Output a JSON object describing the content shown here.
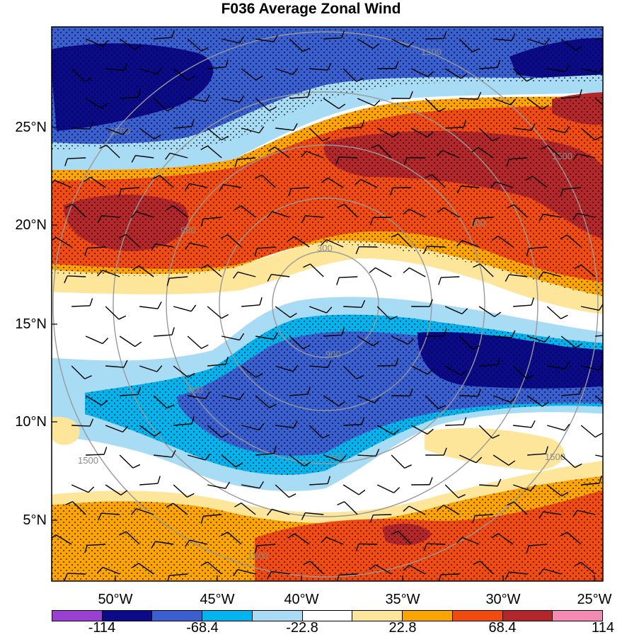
{
  "title": "F036 Average Zonal Wind",
  "lat_labels": [
    "25°N",
    "20°N",
    "15°N",
    "10°N",
    "5°N"
  ],
  "lon_labels": [
    "50°W",
    "45°W",
    "40°W",
    "35°W",
    "30°W",
    "25°W"
  ],
  "colorbar": {
    "colors": [
      "#9a3fd1",
      "#0a0a8a",
      "#3a5fd0",
      "#00b4f0",
      "#a8dcf5",
      "#ffffff",
      "#fde69a",
      "#fca500",
      "#f24b0f",
      "#b3272a",
      "#f48ab4"
    ],
    "labels": [
      "-114",
      "-68.4",
      "-22.8",
      "22.8",
      "68.4",
      "114"
    ]
  },
  "range_ring_labels": [
    "1500",
    "1500",
    "1500",
    "1500",
    "1500",
    "1500",
    "900",
    "900",
    "900",
    "900",
    "300",
    "300"
  ]
}
